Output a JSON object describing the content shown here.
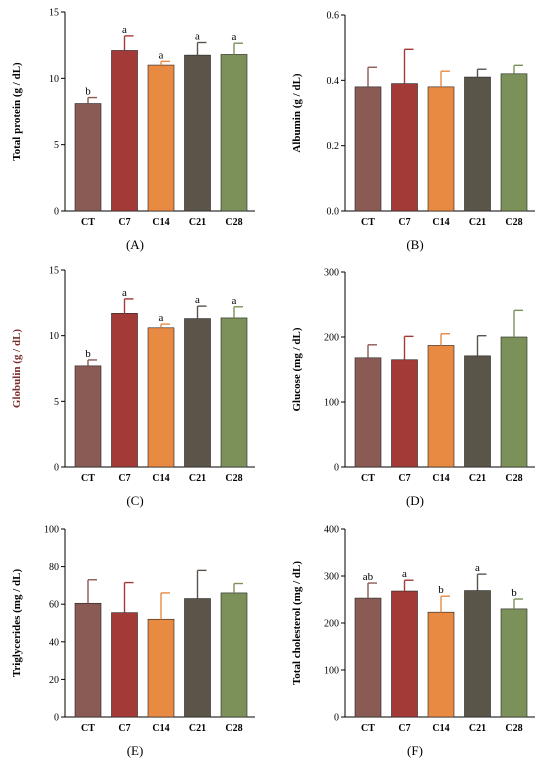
{
  "colors": [
    "#8a5a55",
    "#a33a38",
    "#e98a43",
    "#5b5449",
    "#7c9159"
  ],
  "chart_data": [
    {
      "type": "bar",
      "panel_label": "(A)",
      "ylabel": "Total protein (g / dL)",
      "ylabel_color": "#000000",
      "categories": [
        "CT",
        "C7",
        "C14",
        "C21",
        "C28"
      ],
      "values": [
        8.1,
        12.1,
        11.0,
        11.75,
        11.8
      ],
      "errors": [
        0.45,
        1.1,
        0.28,
        0.95,
        0.85
      ],
      "letters": [
        "b",
        "a",
        "a",
        "a",
        "a"
      ],
      "ylim": [
        0,
        15
      ],
      "yticks": [
        0,
        5,
        10,
        15
      ],
      "ytick_labels": [
        "0",
        "5",
        "10",
        "15"
      ]
    },
    {
      "type": "bar",
      "panel_label": "(B)",
      "ylabel": "Albumin (g / dL)",
      "ylabel_color": "#000000",
      "categories": [
        "CT",
        "C7",
        "C14",
        "C21",
        "C28"
      ],
      "values": [
        0.38,
        0.39,
        0.38,
        0.41,
        0.42
      ],
      "errors": [
        0.06,
        0.105,
        0.048,
        0.024,
        0.026
      ],
      "letters": [
        "",
        "",
        "",
        "",
        ""
      ],
      "ylim": [
        0,
        0.6
      ],
      "yticks": [
        0,
        0.2,
        0.4,
        0.6
      ],
      "ytick_labels": [
        "0.0",
        "0.2",
        "0.4",
        "0.6"
      ]
    },
    {
      "type": "bar",
      "panel_label": "(C)",
      "ylabel": "Globulin (g / dL)",
      "ylabel_color": "#7a2e2b",
      "categories": [
        "CT",
        "C7",
        "C14",
        "C21",
        "C28"
      ],
      "values": [
        7.7,
        11.7,
        10.6,
        11.3,
        11.35
      ],
      "errors": [
        0.45,
        1.1,
        0.28,
        0.95,
        0.85
      ],
      "letters": [
        "b",
        "a",
        "a",
        "a",
        "a"
      ],
      "ylim": [
        0,
        15
      ],
      "yticks": [
        0,
        5,
        10,
        15
      ],
      "ytick_labels": [
        "0",
        "5",
        "10",
        "15"
      ]
    },
    {
      "type": "bar",
      "panel_label": "(D)",
      "ylabel": "Glucose (mg / dL)",
      "ylabel_color": "#000000",
      "categories": [
        "CT",
        "C7",
        "C14",
        "C21",
        "C28"
      ],
      "values": [
        168,
        165,
        187,
        171,
        200
      ],
      "errors": [
        20,
        36,
        18,
        31,
        41
      ],
      "letters": [
        "",
        "",
        "",
        "",
        ""
      ],
      "ylim": [
        0,
        300
      ],
      "yticks": [
        0,
        100,
        200,
        300
      ],
      "ytick_labels": [
        "0",
        "100",
        "200",
        "300"
      ]
    },
    {
      "type": "bar",
      "panel_label": "(E)",
      "ylabel": "Triglycerides (mg / dL)",
      "ylabel_color": "#000000",
      "categories": [
        "CT",
        "C7",
        "C14",
        "C21",
        "C28"
      ],
      "values": [
        60.5,
        55.5,
        52,
        63,
        66
      ],
      "errors": [
        12.5,
        16,
        14,
        15,
        5
      ],
      "letters": [
        "",
        "",
        "",
        "",
        ""
      ],
      "ylim": [
        0,
        100
      ],
      "yticks": [
        0,
        20,
        40,
        60,
        80,
        100
      ],
      "ytick_labels": [
        "0",
        "20",
        "40",
        "60",
        "80",
        "100"
      ]
    },
    {
      "type": "bar",
      "panel_label": "(F)",
      "ylabel": "Total cholesterol (mg / dL)",
      "ylabel_color": "#000000",
      "categories": [
        "CT",
        "C7",
        "C14",
        "C21",
        "C28"
      ],
      "values": [
        253,
        268,
        223,
        269,
        230
      ],
      "errors": [
        32,
        23,
        34,
        35,
        21
      ],
      "letters": [
        "ab",
        "a",
        "b",
        "a",
        "b"
      ],
      "ylim": [
        0,
        400
      ],
      "yticks": [
        0,
        100,
        200,
        300,
        400
      ],
      "ytick_labels": [
        "0",
        "100",
        "200",
        "300",
        "400"
      ]
    }
  ]
}
